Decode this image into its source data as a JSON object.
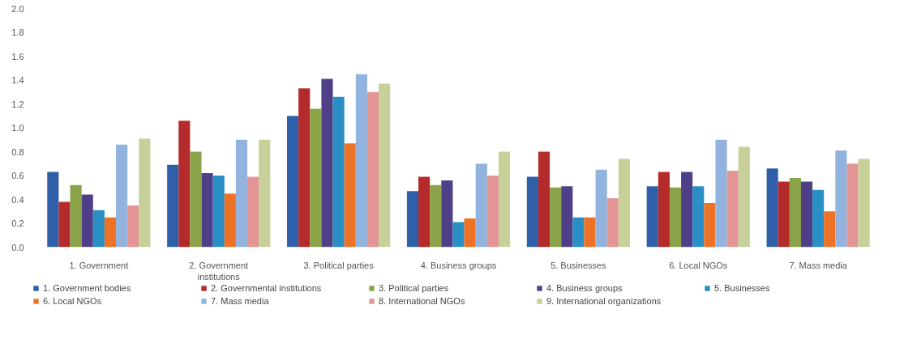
{
  "chart_data": {
    "type": "bar",
    "categories": [
      "1. Government",
      "2. Government institutions",
      "3. Political parties",
      "4. Business groups",
      "5. Businesses",
      "6. Local NGOs",
      "7. Mass media"
    ],
    "series": [
      {
        "name": "1. Government bodies",
        "color": "#2e5fa8",
        "values": [
          0.63,
          0.69,
          1.1,
          0.47,
          0.59,
          0.51,
          0.66
        ]
      },
      {
        "name": "2. Governmental institutions",
        "color": "#b52a2a",
        "values": [
          0.38,
          1.06,
          1.33,
          0.59,
          0.8,
          0.63,
          0.55
        ]
      },
      {
        "name": "3. Political parties",
        "color": "#8aa248",
        "values": [
          0.52,
          0.8,
          1.16,
          0.52,
          0.5,
          0.5,
          0.58
        ]
      },
      {
        "name": "4. Business groups",
        "color": "#4e3f88",
        "values": [
          0.44,
          0.62,
          1.41,
          0.56,
          0.51,
          0.63,
          0.55
        ]
      },
      {
        "name": "5. Businesses",
        "color": "#2a8fc4",
        "values": [
          0.31,
          0.6,
          1.26,
          0.21,
          0.25,
          0.51,
          0.48
        ]
      },
      {
        "name": "6. Local NGOs",
        "color": "#ee7225",
        "values": [
          0.25,
          0.45,
          0.87,
          0.24,
          0.25,
          0.37,
          0.3
        ]
      },
      {
        "name": "7. Mass media",
        "color": "#93b3df",
        "values": [
          0.86,
          0.9,
          1.45,
          0.7,
          0.65,
          0.9,
          0.81
        ]
      },
      {
        "name": "8. International NGOs",
        "color": "#e39595",
        "values": [
          0.35,
          0.59,
          1.3,
          0.6,
          0.41,
          0.64,
          0.7
        ]
      },
      {
        "name": "9. International organizations",
        "color": "#c8d09a",
        "values": [
          0.91,
          0.9,
          1.37,
          0.8,
          0.74,
          0.84,
          0.74
        ]
      }
    ],
    "ylim": [
      0,
      2.0
    ],
    "yticks": [
      {
        "value": 0,
        "label": "0.0"
      },
      {
        "value": 0.2,
        "label": "0.2"
      },
      {
        "value": 0.4,
        "label": "0.4"
      },
      {
        "value": 0.6,
        "label": "0.6"
      },
      {
        "value": 0.8,
        "label": "0.8"
      },
      {
        "value": 1.0,
        "label": "1.0"
      },
      {
        "value": 1.2,
        "label": "1.2"
      },
      {
        "value": 1.4,
        "label": "1.4"
      },
      {
        "value": 1.6,
        "label": "1.6"
      },
      {
        "value": 1.8,
        "label": "1.8"
      },
      {
        "value": 2.0,
        "label": "2.0"
      }
    ],
    "grid": false,
    "legend": "bottom"
  }
}
